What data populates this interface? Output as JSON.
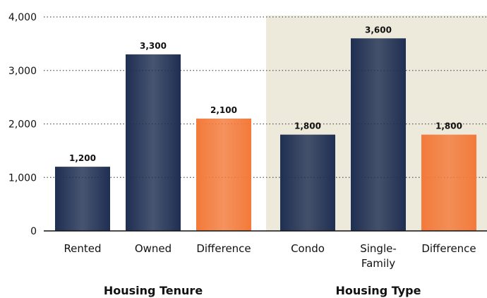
{
  "chart_data": {
    "type": "bar",
    "ylim": [
      0,
      4000
    ],
    "yticks": [
      0,
      {
        "value": 1000,
        "label": "1,000"
      },
      {
        "value": 2000,
        "label": "2,000"
      },
      {
        "value": 3000,
        "label": "3,000"
      },
      {
        "value": 4000,
        "label": "4,000"
      }
    ],
    "grid": true,
    "groups": [
      {
        "name": "Housing Tenure",
        "background": null,
        "categories": [
          "Rented",
          "Owned",
          "Difference"
        ],
        "values": [
          1200,
          3300,
          2100
        ],
        "value_labels": [
          "1,200",
          "3,300",
          "2,100"
        ],
        "colors": [
          "#1f2f52",
          "#1f2f52",
          "#f37a3a"
        ]
      },
      {
        "name": "Housing Type",
        "background": "#eeeadb",
        "categories": [
          "Condo",
          "Single-\nFamily",
          "Difference"
        ],
        "values": [
          1800,
          3600,
          1800
        ],
        "value_labels": [
          "1,800",
          "3,600",
          "1,800"
        ],
        "colors": [
          "#1f2f52",
          "#1f2f52",
          "#f37a3a"
        ]
      }
    ]
  }
}
